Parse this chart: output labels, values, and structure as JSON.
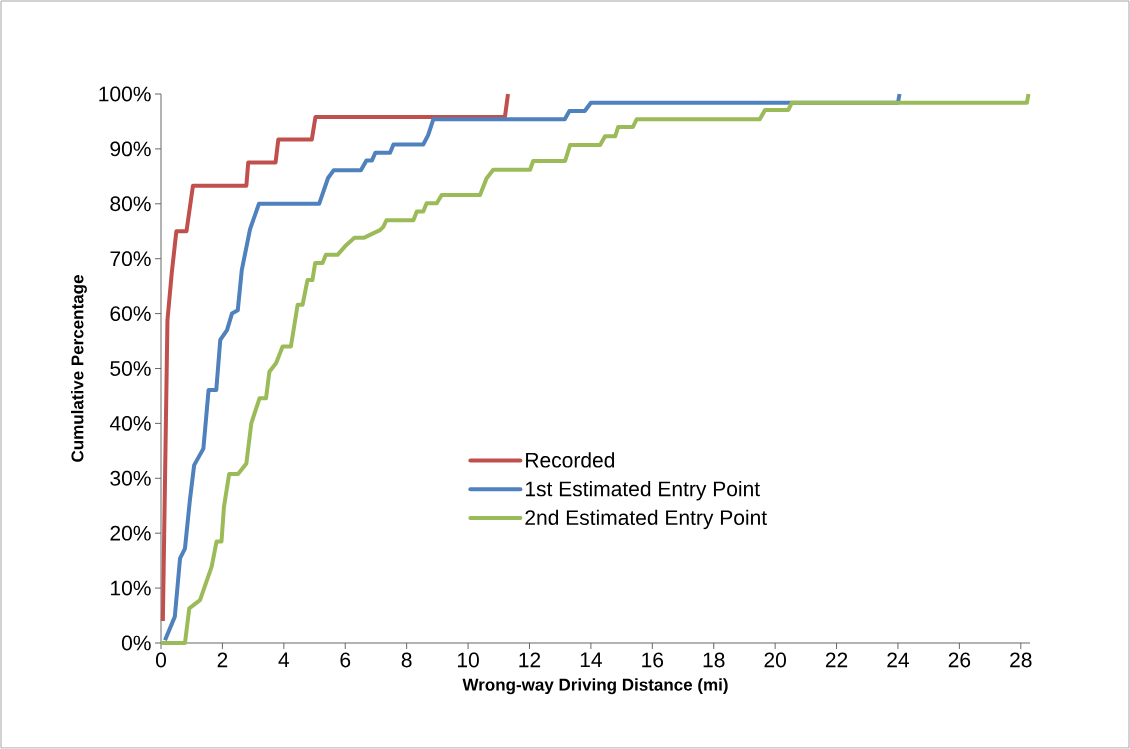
{
  "chart_data": {
    "type": "line",
    "xlabel": "Wrong-way Driving Distance (mi)",
    "ylabel": "Cumulative Percentage",
    "xlim": [
      0,
      28.3
    ],
    "xticks": [
      0,
      2,
      4,
      6,
      8,
      10,
      12,
      14,
      16,
      18,
      20,
      22,
      24,
      26,
      28
    ],
    "ylim": [
      0,
      100
    ],
    "yticks": [
      {
        "value": 0,
        "label": "0%"
      },
      {
        "value": 10,
        "label": "10%"
      },
      {
        "value": 20,
        "label": "20%"
      },
      {
        "value": 30,
        "label": "30%"
      },
      {
        "value": 40,
        "label": "40%"
      },
      {
        "value": 50,
        "label": "50%"
      },
      {
        "value": 60,
        "label": "60%"
      },
      {
        "value": 70,
        "label": "70%"
      },
      {
        "value": 80,
        "label": "80%"
      },
      {
        "value": 90,
        "label": "90%"
      },
      {
        "value": 100,
        "label": "100%"
      }
    ],
    "grid": false,
    "legend": "center",
    "marker": "none",
    "line_style": "solid",
    "series": [
      {
        "name": "Recorded",
        "color": "#c0504d",
        "x": [
          0.06,
          0.21,
          0.35,
          0.5,
          0.83,
          1.04,
          2.78,
          2.84,
          3.73,
          3.82,
          4.91,
          5.03,
          11.2,
          11.3
        ],
        "values": [
          4,
          58.8,
          67.4,
          75,
          75,
          83.3,
          83.3,
          87.5,
          87.5,
          91.7,
          91.7,
          95.8,
          95.8,
          100
        ]
      },
      {
        "name": "1st Estimated Entry Point",
        "color": "#4f81bd",
        "x": [
          0.13,
          0.45,
          0.62,
          0.78,
          0.94,
          1.08,
          1.38,
          1.55,
          1.8,
          1.93,
          2.15,
          2.31,
          2.5,
          2.63,
          2.9,
          3.19,
          5.15,
          5.44,
          5.62,
          6.51,
          6.69,
          6.87,
          6.98,
          7.46,
          7.57,
          8.54,
          8.7,
          8.87,
          13.15,
          13.3,
          13.8,
          14.0,
          24.0,
          24.05
        ],
        "values": [
          0.5,
          4.8,
          15.4,
          17.2,
          26,
          32.4,
          35.4,
          46.1,
          46.1,
          55.2,
          57,
          60,
          60.6,
          67.9,
          75.4,
          80,
          80,
          84.7,
          86.1,
          86.1,
          87.9,
          87.9,
          89.3,
          89.3,
          90.8,
          90.8,
          92.5,
          95.4,
          95.4,
          96.9,
          96.9,
          98.4,
          98.4,
          100
        ]
      },
      {
        "name": "2nd Estimated Entry Point",
        "color": "#9bbb59",
        "x": [
          0,
          0.78,
          0.92,
          1.27,
          1.65,
          1.81,
          1.97,
          2.05,
          2.22,
          2.51,
          2.78,
          2.94,
          3.21,
          3.42,
          3.53,
          3.75,
          3.96,
          4.23,
          4.45,
          4.61,
          4.77,
          4.93,
          5.02,
          5.26,
          5.37,
          5.75,
          6.0,
          6.3,
          6.6,
          7.13,
          7.24,
          7.34,
          8.22,
          8.33,
          8.54,
          8.65,
          8.98,
          9.14,
          10.39,
          10.6,
          10.82,
          12.02,
          12.12,
          13.16,
          13.32,
          14.3,
          14.46,
          14.79,
          14.89,
          15.37,
          15.49,
          19.5,
          19.67,
          20.43,
          20.54,
          28.2,
          28.25
        ],
        "values": [
          0,
          0,
          6.3,
          7.8,
          13.9,
          18.5,
          18.5,
          24.8,
          30.8,
          30.8,
          32.7,
          40,
          44.6,
          44.6,
          49.4,
          51,
          54,
          54,
          61.6,
          61.6,
          66.1,
          66.1,
          69.2,
          69.2,
          70.7,
          70.7,
          72.3,
          73.8,
          73.8,
          75.2,
          75.8,
          77,
          77,
          78.6,
          78.6,
          80.1,
          80.1,
          81.6,
          81.6,
          84.6,
          86.2,
          86.2,
          87.8,
          87.8,
          90.7,
          90.7,
          92.3,
          92.3,
          94,
          94,
          95.4,
          95.4,
          97.1,
          97.1,
          98.4,
          98.4,
          100
        ]
      }
    ]
  }
}
